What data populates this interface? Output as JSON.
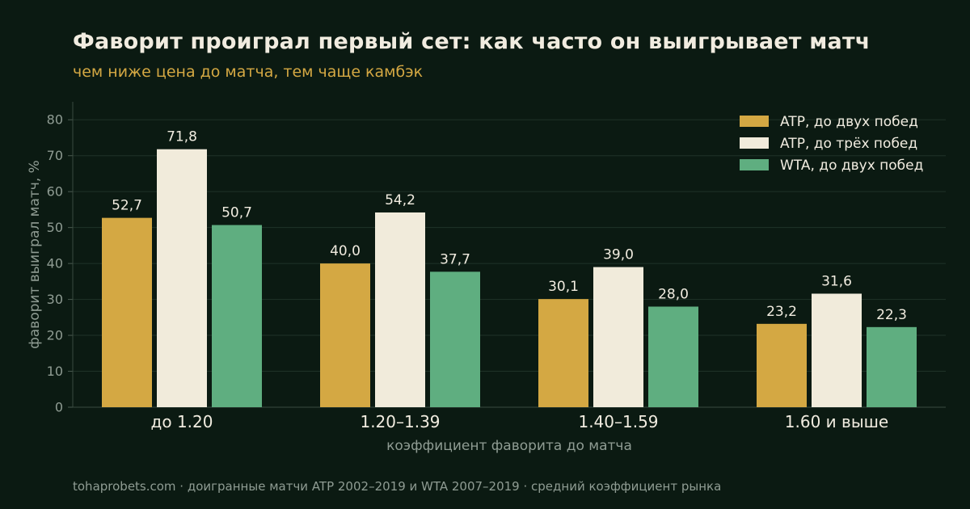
{
  "header": {
    "title": "Фаворит проиграл первый сет: как часто он выигрывает матч",
    "subtitle": "чем ниже цена до матча, тем чаще камбэк"
  },
  "footer": {
    "source": "tohaprobets.com · доигранные матчи ATP 2002–2019 и WTA 2007–2019 · средний коэффициент рынка"
  },
  "colors": {
    "background": "#0b1a12",
    "grid": "#1f3328",
    "text": "#f1ece0",
    "muted": "#8f9c93",
    "accent": "#d4a843"
  },
  "chart_data": {
    "type": "bar",
    "title": "Фаворит проиграл первый сет: как часто он выигрывает матч",
    "subtitle": "чем ниже цена до матча, тем чаще камбэк",
    "xlabel": "коэффициент фаворита до матча",
    "ylabel": "фаворит выиграл матч, %",
    "categories": [
      "до 1.20",
      "1.20–1.39",
      "1.40–1.59",
      "1.60 и выше"
    ],
    "ylim": [
      0,
      85
    ],
    "yticks": [
      0,
      10,
      20,
      30,
      40,
      50,
      60,
      70,
      80
    ],
    "grid": true,
    "legend_position": "top-right",
    "series": [
      {
        "name": "ATP, до двух побед",
        "color": "#d4a843",
        "values": [
          52.7,
          40.0,
          30.1,
          23.2
        ],
        "labels": [
          "52,7",
          "40,0",
          "30,1",
          "23,2"
        ]
      },
      {
        "name": "ATP, до трёх побед",
        "color": "#f1ebdb",
        "values": [
          71.8,
          54.2,
          39.0,
          31.6
        ],
        "labels": [
          "71,8",
          "54,2",
          "39,0",
          "31,6"
        ]
      },
      {
        "name": "WTA, до двух побед",
        "color": "#5fae80",
        "values": [
          50.7,
          37.7,
          28.0,
          22.3
        ],
        "labels": [
          "50,7",
          "37,7",
          "28,0",
          "22,3"
        ]
      }
    ]
  }
}
